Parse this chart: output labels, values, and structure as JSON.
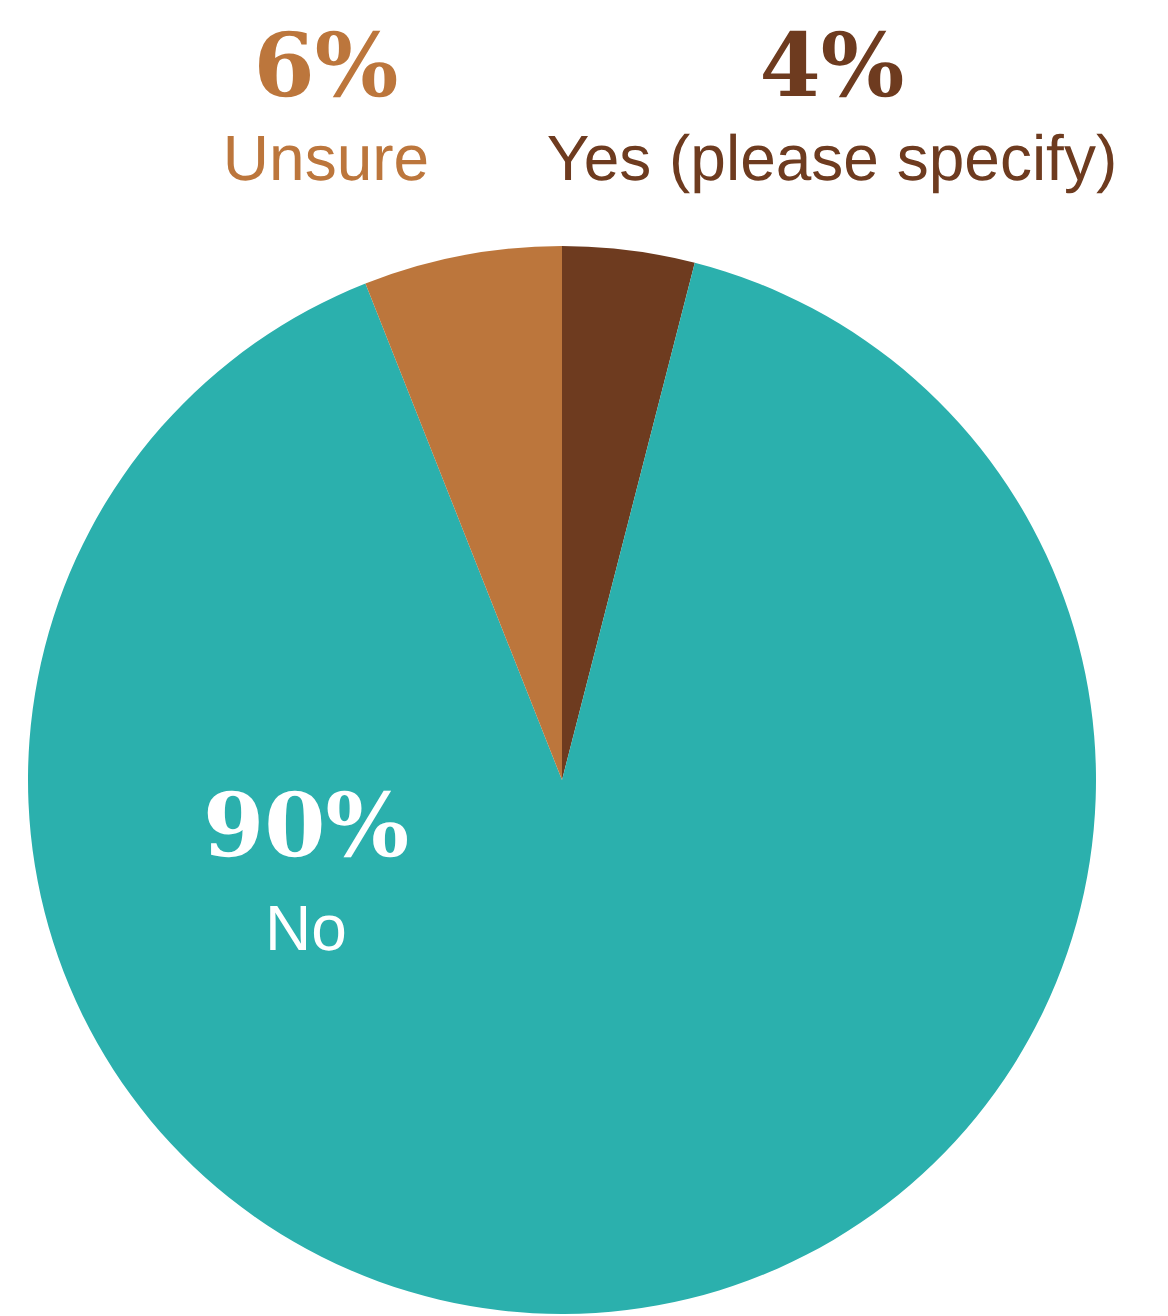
{
  "chart_data": {
    "type": "pie",
    "categories": [
      "Yes (please specify)",
      "No",
      "Unsure"
    ],
    "values": [
      4,
      90,
      6
    ],
    "colors": [
      "#6e3b1f",
      "#2bb0ad",
      "#bc763c"
    ],
    "value_labels": [
      "4%",
      "90%",
      "6%"
    ]
  }
}
